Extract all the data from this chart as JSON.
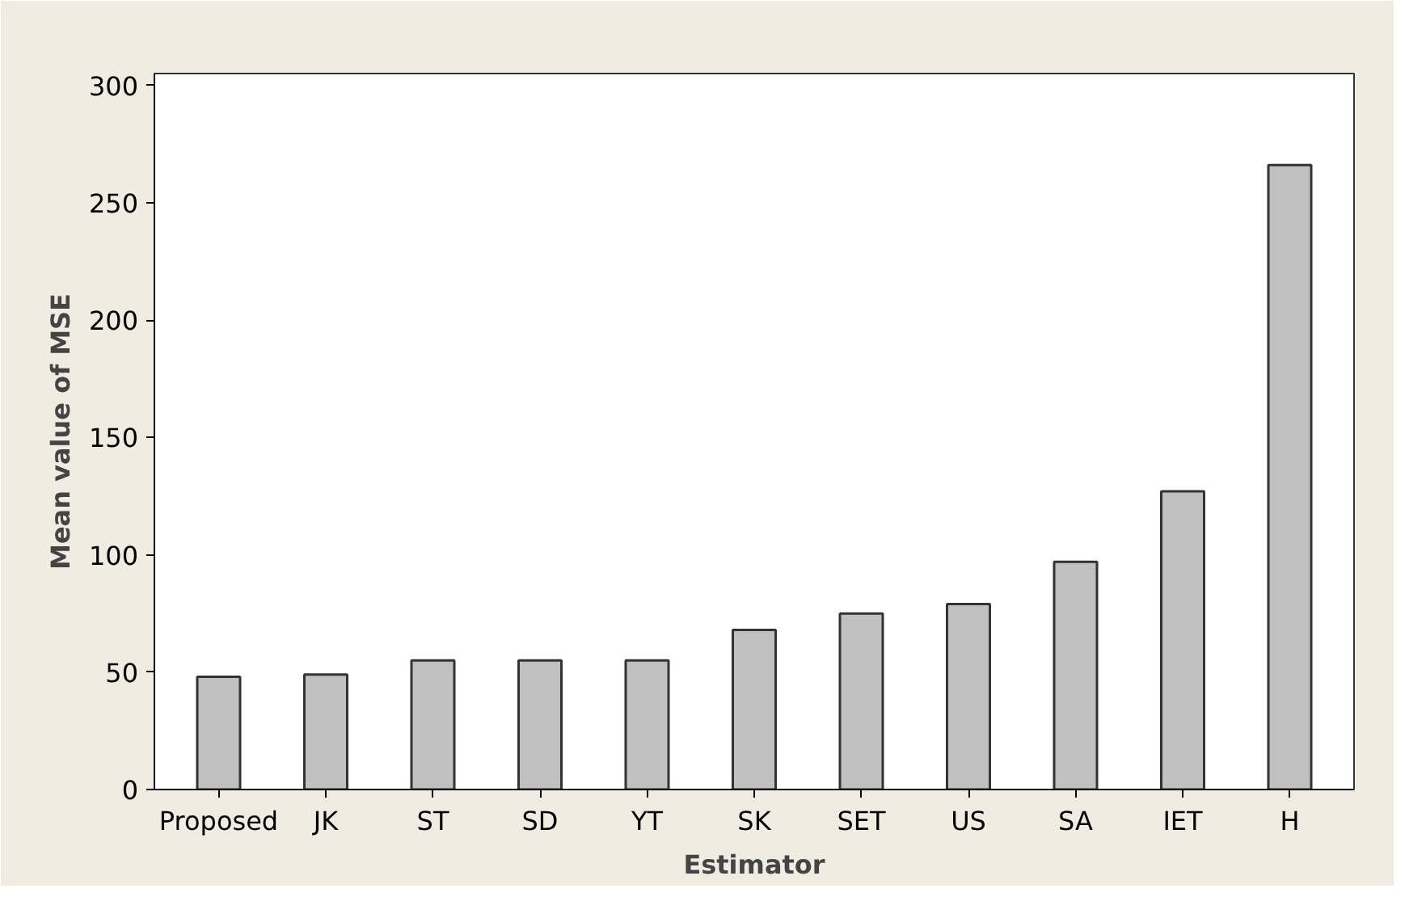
{
  "chart_data": {
    "type": "bar",
    "xlabel": "Estimator",
    "ylabel": "Mean value of MSE",
    "categories": [
      "Proposed",
      "JK",
      "ST",
      "SD",
      "YT",
      "SK",
      "SET",
      "US",
      "SA",
      "IET",
      "H"
    ],
    "values": [
      48,
      49,
      55,
      55,
      55,
      68,
      75,
      79,
      97,
      127,
      266
    ],
    "color": "#c0c0c0",
    "ylim": [
      0,
      305
    ],
    "yticks": [
      0,
      50,
      100,
      150,
      200,
      250,
      300
    ],
    "grid": false
  }
}
